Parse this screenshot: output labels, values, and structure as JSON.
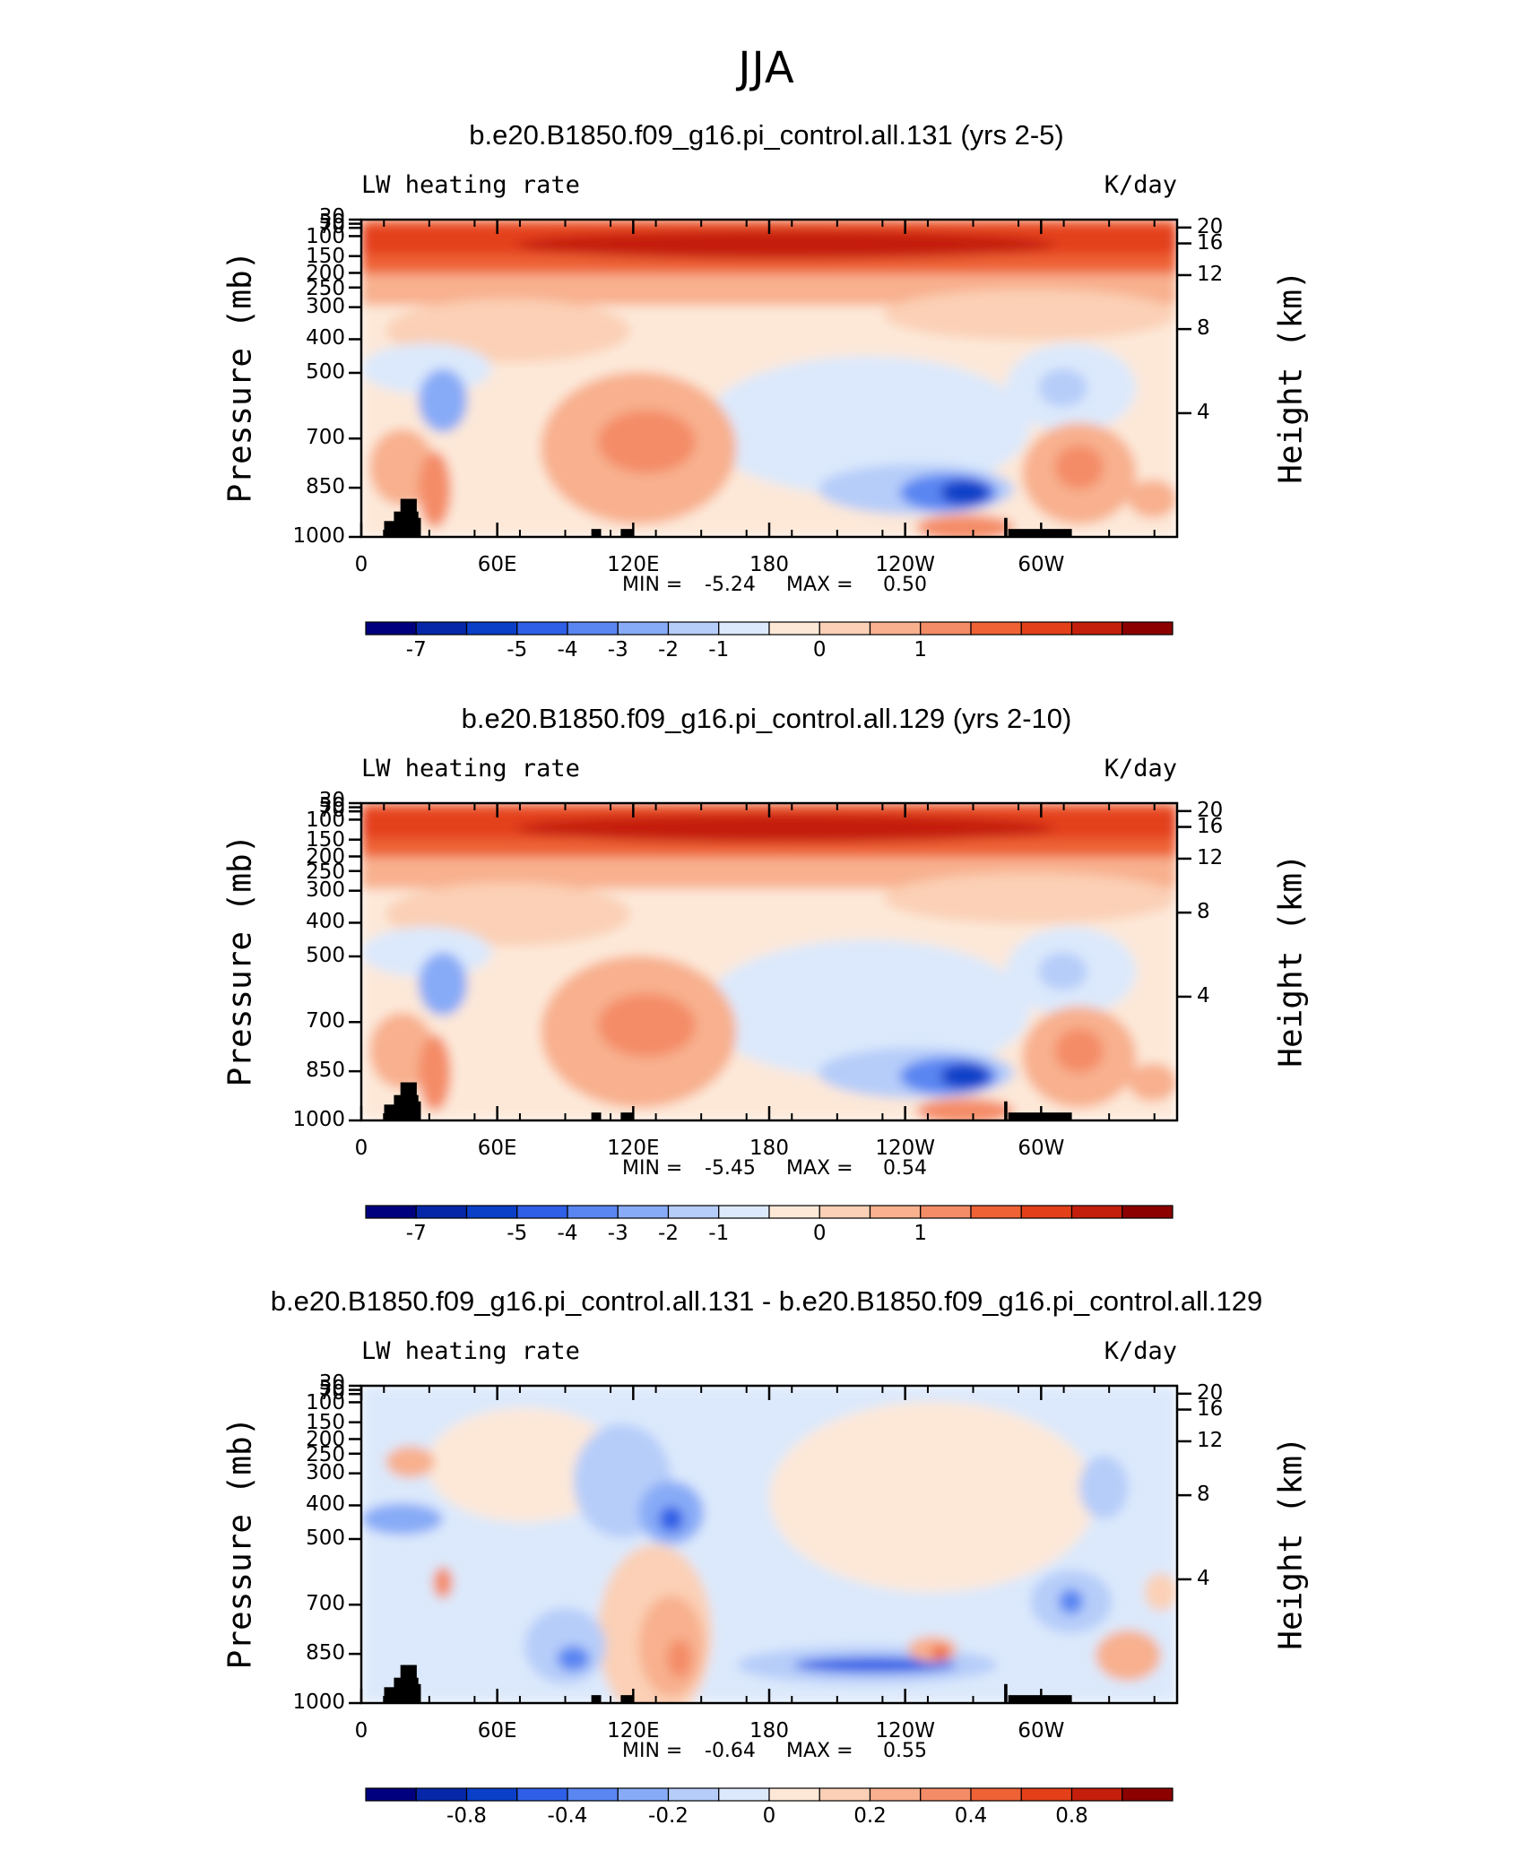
{
  "figure": {
    "title": "JJA"
  },
  "colors": {
    "contour_scale": [
      "#00007f",
      "#0628a8",
      "#0a3fc8",
      "#2f5fe6",
      "#5a86f2",
      "#88abf7",
      "#b6cdf9",
      "#dce9fc",
      "#fde8d8",
      "#fbd0b6",
      "#f8b08e",
      "#f48c67",
      "#ee6236",
      "#e3401a",
      "#c41f0c",
      "#8c0000"
    ],
    "terrain": "#000000"
  },
  "chart_data": [
    {
      "type": "heatmap",
      "title": "b.e20.B1850.f09_g16.pi_control.all.131 (yrs 2-5)",
      "variable": "LW heating rate",
      "units": "K/day",
      "xlabel": "",
      "ylabel": "Pressure (mb)",
      "ylabel_right": "Height (km)",
      "x_ticks": [
        "0",
        "60E",
        "120E",
        "180",
        "120W",
        "60W"
      ],
      "y_ticks_pressure": [
        "30",
        "50",
        "70",
        "100",
        "150",
        "200",
        "250",
        "300",
        "400",
        "500",
        "700",
        "850",
        "1000"
      ],
      "y_ticks_height": [
        "20",
        "16",
        "12",
        "8",
        "4"
      ],
      "stats": {
        "min_label": "MIN =",
        "min_value": "-5.24",
        "max_label": "MAX =",
        "max_value": "0.50"
      },
      "colorbar_labels": [
        "-7",
        "-5",
        "-4",
        "-3",
        "-2",
        "-1",
        "0",
        "1"
      ]
    },
    {
      "type": "heatmap",
      "title": "b.e20.B1850.f09_g16.pi_control.all.129 (yrs 2-10)",
      "variable": "LW heating rate",
      "units": "K/day",
      "xlabel": "",
      "ylabel": "Pressure (mb)",
      "ylabel_right": "Height (km)",
      "x_ticks": [
        "0",
        "60E",
        "120E",
        "180",
        "120W",
        "60W"
      ],
      "y_ticks_pressure": [
        "30",
        "50",
        "70",
        "100",
        "150",
        "200",
        "250",
        "300",
        "400",
        "500",
        "700",
        "850",
        "1000"
      ],
      "y_ticks_height": [
        "20",
        "16",
        "12",
        "8",
        "4"
      ],
      "stats": {
        "min_label": "MIN =",
        "min_value": "-5.45",
        "max_label": "MAX =",
        "max_value": "0.54"
      },
      "colorbar_labels": [
        "-7",
        "-5",
        "-4",
        "-3",
        "-2",
        "-1",
        "0",
        "1"
      ]
    },
    {
      "type": "heatmap",
      "title": "b.e20.B1850.f09_g16.pi_control.all.131 - b.e20.B1850.f09_g16.pi_control.all.129",
      "variable": "LW heating rate",
      "units": "K/day",
      "xlabel": "",
      "ylabel": "Pressure (mb)",
      "ylabel_right": "Height (km)",
      "x_ticks": [
        "0",
        "60E",
        "120E",
        "180",
        "120W",
        "60W"
      ],
      "y_ticks_pressure": [
        "30",
        "50",
        "70",
        "100",
        "150",
        "200",
        "250",
        "300",
        "400",
        "500",
        "700",
        "850",
        "1000"
      ],
      "y_ticks_height": [
        "20",
        "16",
        "12",
        "8",
        "4"
      ],
      "stats": {
        "min_label": "MIN =",
        "min_value": "-0.64",
        "max_label": "MAX =",
        "max_value": "0.55"
      },
      "colorbar_labels": [
        "-0.8",
        "-0.4",
        "-0.2",
        "0",
        "0.2",
        "0.4",
        "0.8"
      ]
    }
  ]
}
